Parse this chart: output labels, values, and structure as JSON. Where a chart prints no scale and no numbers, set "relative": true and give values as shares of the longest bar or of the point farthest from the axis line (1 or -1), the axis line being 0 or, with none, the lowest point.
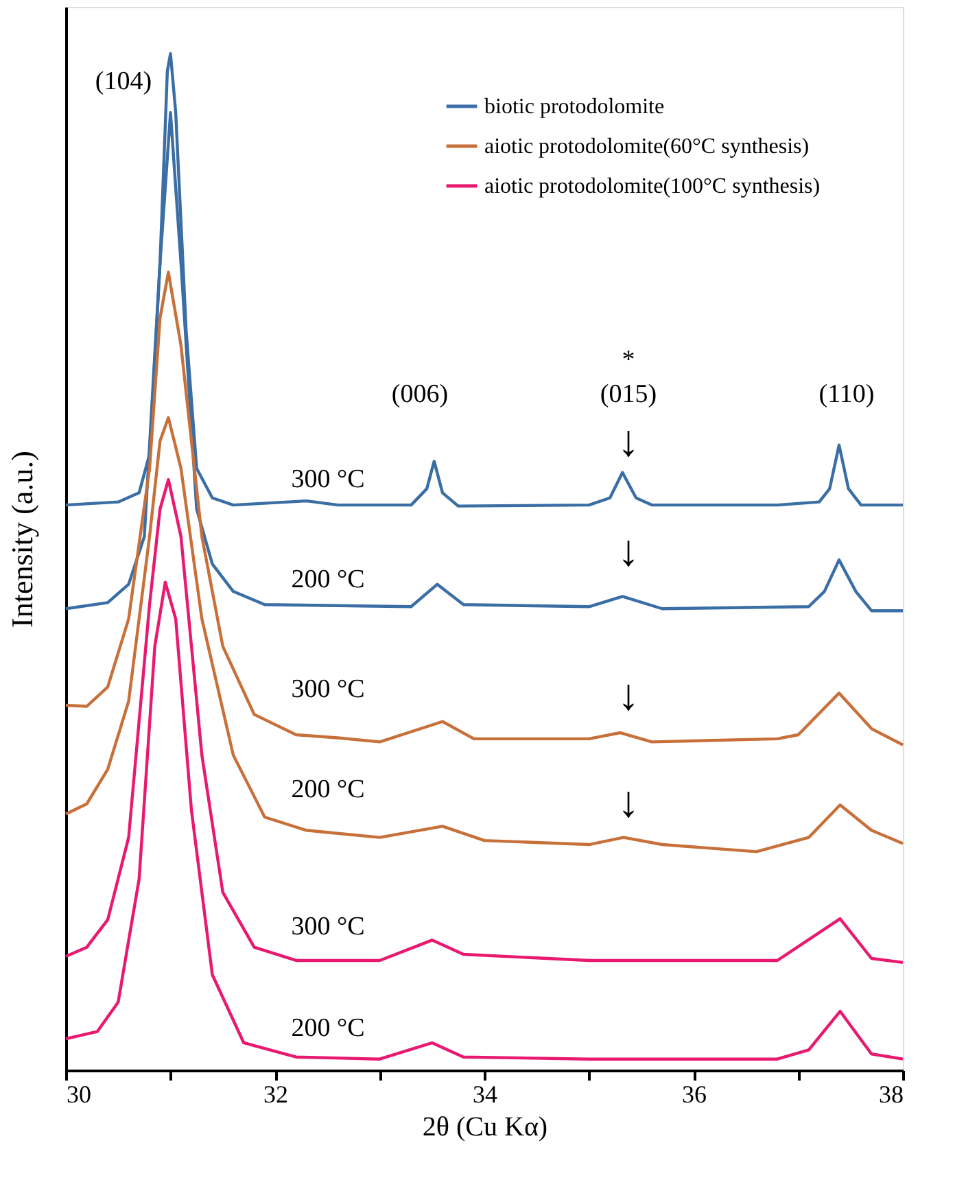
{
  "chart_data": {
    "type": "line",
    "relative": true,
    "xlabel": "2θ (Cu Kα)",
    "ylabel": "Intensity (a.u.)",
    "xlim": [
      30,
      38
    ],
    "xticks": [
      {
        "value": 30,
        "label": "30"
      },
      {
        "value": 31,
        "label": null
      },
      {
        "value": 32,
        "label": "32"
      },
      {
        "value": 33,
        "label": null
      },
      {
        "value": 34,
        "label": "34"
      },
      {
        "value": 35,
        "label": null
      },
      {
        "value": 36,
        "label": "36"
      },
      {
        "value": 37,
        "label": null
      },
      {
        "value": 38,
        "label": "38"
      }
    ],
    "grid": false,
    "legend": "top right",
    "line_style": "solid",
    "marker": "none",
    "series": [
      {
        "name": "biotic protodolomite",
        "color": "#3a6ea5",
        "x": [
          30.0,
          30.5,
          30.7,
          30.8,
          30.9,
          30.97,
          31.0,
          31.05,
          31.15,
          31.25,
          31.4,
          31.6,
          32.3,
          32.6,
          33.3,
          33.45,
          33.52,
          33.6,
          33.75,
          35.0,
          35.2,
          35.32,
          35.45,
          35.6,
          36.8,
          37.2,
          37.3,
          37.39,
          37.48,
          37.6,
          38.0
        ],
        "values": [
          0.556,
          0.559,
          0.568,
          0.606,
          0.794,
          0.983,
          1.0,
          0.942,
          0.727,
          0.592,
          0.563,
          0.556,
          0.56,
          0.556,
          0.556,
          0.572,
          0.599,
          0.568,
          0.555,
          0.556,
          0.563,
          0.588,
          0.563,
          0.556,
          0.556,
          0.559,
          0.572,
          0.615,
          0.572,
          0.556,
          0.556
        ]
      },
      {
        "color": "#3a6ea5",
        "x": [
          30.0,
          30.4,
          30.6,
          30.75,
          30.9,
          31.0,
          31.1,
          31.25,
          31.4,
          31.6,
          31.9,
          33.3,
          33.55,
          33.8,
          35.0,
          35.32,
          35.7,
          37.1,
          37.25,
          37.39,
          37.55,
          37.7,
          38.0
        ],
        "values": [
          0.454,
          0.46,
          0.478,
          0.525,
          0.794,
          0.942,
          0.794,
          0.552,
          0.498,
          0.471,
          0.458,
          0.456,
          0.478,
          0.458,
          0.456,
          0.466,
          0.454,
          0.456,
          0.471,
          0.502,
          0.471,
          0.452,
          0.452
        ]
      },
      {
        "name": "aiotic protodolomite(60°C synthesis)",
        "color": "#c8703a",
        "x": [
          30.0,
          30.2,
          30.4,
          30.6,
          30.8,
          30.9,
          30.98,
          31.1,
          31.3,
          31.5,
          31.8,
          32.2,
          32.6,
          33.0,
          33.6,
          33.9,
          35.0,
          35.3,
          35.6,
          36.8,
          37.0,
          37.39,
          37.7,
          38.0
        ],
        "values": [
          0.359,
          0.358,
          0.377,
          0.444,
          0.592,
          0.74,
          0.785,
          0.713,
          0.525,
          0.417,
          0.35,
          0.33,
          0.327,
          0.323,
          0.343,
          0.326,
          0.326,
          0.332,
          0.323,
          0.326,
          0.33,
          0.371,
          0.336,
          0.32
        ]
      },
      {
        "color": "#c8703a",
        "x": [
          30.0,
          30.2,
          30.4,
          30.6,
          30.8,
          30.9,
          30.98,
          31.1,
          31.3,
          31.6,
          31.9,
          32.3,
          33.0,
          33.6,
          34.0,
          35.0,
          35.33,
          35.7,
          36.6,
          37.1,
          37.4,
          37.7,
          38.0
        ],
        "values": [
          0.252,
          0.262,
          0.296,
          0.363,
          0.525,
          0.619,
          0.642,
          0.592,
          0.444,
          0.31,
          0.249,
          0.236,
          0.229,
          0.24,
          0.226,
          0.222,
          0.229,
          0.222,
          0.215,
          0.229,
          0.261,
          0.236,
          0.223
        ]
      },
      {
        "name": "aiotic protodolomite(100°C synthesis)",
        "color": "#e8196e",
        "x": [
          30.0,
          30.2,
          30.4,
          30.6,
          30.8,
          30.9,
          30.98,
          31.1,
          31.3,
          31.5,
          31.8,
          32.2,
          33.0,
          33.5,
          33.8,
          35.0,
          36.8,
          37.4,
          37.7,
          38.0
        ],
        "values": [
          0.112,
          0.121,
          0.148,
          0.229,
          0.458,
          0.552,
          0.581,
          0.525,
          0.31,
          0.175,
          0.121,
          0.108,
          0.108,
          0.128,
          0.114,
          0.108,
          0.108,
          0.149,
          0.11,
          0.106
        ]
      },
      {
        "color": "#e8196e",
        "x": [
          30.0,
          30.3,
          30.5,
          30.7,
          30.85,
          30.95,
          31.05,
          31.2,
          31.4,
          31.7,
          32.2,
          33.0,
          33.5,
          33.8,
          35.0,
          36.8,
          37.1,
          37.4,
          37.7,
          38.0
        ],
        "values": [
          0.031,
          0.038,
          0.067,
          0.188,
          0.417,
          0.48,
          0.444,
          0.256,
          0.094,
          0.027,
          0.013,
          0.011,
          0.027,
          0.013,
          0.011,
          0.011,
          0.02,
          0.058,
          0.016,
          0.011
        ]
      }
    ],
    "annotations": [
      "(104)",
      "(006)",
      "*",
      "(015)",
      "(110)",
      "300 °C",
      "200 °C",
      "300 °C",
      "200 °C",
      "300 °C",
      "200 °C",
      "↓",
      "↓",
      "↓",
      "↓"
    ]
  }
}
